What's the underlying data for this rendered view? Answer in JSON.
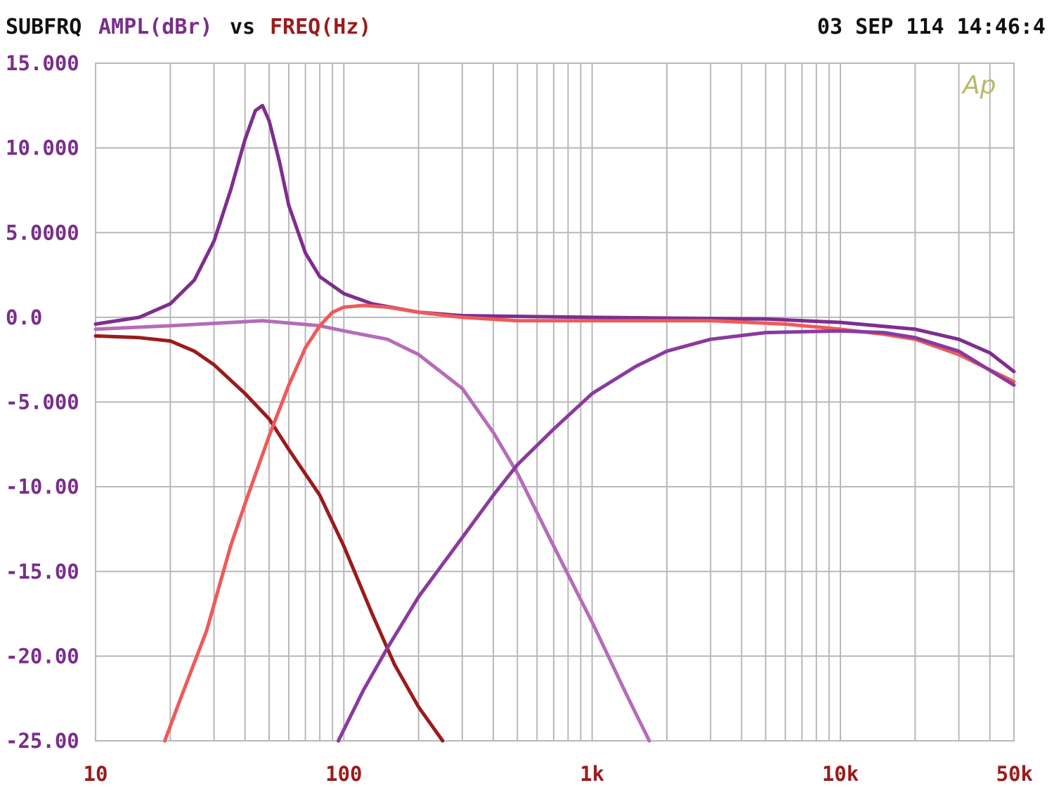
{
  "header": {
    "label": "SUBFRQ",
    "y_quantity": "AMPL(dBr)",
    "vs": "vs",
    "x_quantity": "FREQ(Hz)",
    "timestamp": "03 SEP 114 14:46:4"
  },
  "logo": "Ap",
  "colors": {
    "header_text": "#111111",
    "y_axis_text": "#7a2e8a",
    "x_axis_text": "#9b1b1b",
    "grid": "#b8b8b8",
    "logo": "#b8b86a"
  },
  "chart_data": {
    "type": "line",
    "x_scale": "log",
    "xlim": [
      10,
      50000
    ],
    "ylim": [
      -25,
      15
    ],
    "grid": true,
    "x_ticks": [
      {
        "value": 10,
        "label": "10"
      },
      {
        "value": 100,
        "label": "100"
      },
      {
        "value": 1000,
        "label": "1k"
      },
      {
        "value": 10000,
        "label": "10k"
      },
      {
        "value": 50000,
        "label": "50k"
      }
    ],
    "y_ticks": [
      {
        "value": 15,
        "label": "15.000"
      },
      {
        "value": 10,
        "label": "10.000"
      },
      {
        "value": 5,
        "label": "5.0000"
      },
      {
        "value": 0,
        "label": "0.0"
      },
      {
        "value": -5,
        "label": "-5.000"
      },
      {
        "value": -10,
        "label": "-10.00"
      },
      {
        "value": -15,
        "label": "-15.00"
      },
      {
        "value": -20,
        "label": "-20.00"
      },
      {
        "value": -25,
        "label": "-25.00"
      }
    ],
    "series": [
      {
        "color": "#7e2e8e",
        "points": [
          [
            10,
            -0.4
          ],
          [
            15,
            0
          ],
          [
            20,
            0.8
          ],
          [
            25,
            2.2
          ],
          [
            30,
            4.5
          ],
          [
            35,
            7.5
          ],
          [
            40,
            10.5
          ],
          [
            44,
            12.2
          ],
          [
            47,
            12.5
          ],
          [
            50,
            11.6
          ],
          [
            55,
            9.2
          ],
          [
            60,
            6.6
          ],
          [
            70,
            3.8
          ],
          [
            80,
            2.4
          ],
          [
            100,
            1.4
          ],
          [
            130,
            0.8
          ],
          [
            200,
            0.3
          ],
          [
            300,
            0.1
          ],
          [
            1000,
            0
          ],
          [
            5000,
            -0.1
          ],
          [
            10000,
            -0.3
          ],
          [
            20000,
            -0.7
          ],
          [
            30000,
            -1.3
          ],
          [
            40000,
            -2.1
          ],
          [
            50000,
            -3.2
          ]
        ]
      },
      {
        "color": "#b56cb9",
        "points": [
          [
            10,
            -0.7
          ],
          [
            20,
            -0.5
          ],
          [
            47,
            -0.2
          ],
          [
            80,
            -0.5
          ],
          [
            100,
            -0.8
          ],
          [
            150,
            -1.3
          ],
          [
            200,
            -2.2
          ],
          [
            300,
            -4.2
          ],
          [
            400,
            -6.8
          ],
          [
            500,
            -9.2
          ],
          [
            700,
            -13.5
          ],
          [
            1000,
            -18
          ],
          [
            1400,
            -22.5
          ],
          [
            1700,
            -25
          ]
        ]
      },
      {
        "color": "#9b1b1b",
        "points": [
          [
            10,
            -1.1
          ],
          [
            15,
            -1.2
          ],
          [
            20,
            -1.4
          ],
          [
            25,
            -2
          ],
          [
            30,
            -2.8
          ],
          [
            40,
            -4.5
          ],
          [
            50,
            -6
          ],
          [
            60,
            -7.8
          ],
          [
            80,
            -10.5
          ],
          [
            100,
            -13.5
          ],
          [
            130,
            -17.5
          ],
          [
            160,
            -20.5
          ],
          [
            200,
            -23
          ],
          [
            250,
            -25
          ]
        ]
      },
      {
        "color": "#ee5a5a",
        "points": [
          [
            19,
            -25
          ],
          [
            22,
            -22.5
          ],
          [
            28,
            -18.5
          ],
          [
            35,
            -13.5
          ],
          [
            40,
            -11
          ],
          [
            50,
            -7
          ],
          [
            60,
            -4
          ],
          [
            70,
            -1.8
          ],
          [
            80,
            -0.5
          ],
          [
            90,
            0.3
          ],
          [
            100,
            0.6
          ],
          [
            120,
            0.7
          ],
          [
            150,
            0.6
          ],
          [
            200,
            0.3
          ],
          [
            300,
            0
          ],
          [
            500,
            -0.2
          ],
          [
            1000,
            -0.2
          ],
          [
            3000,
            -0.2
          ],
          [
            6000,
            -0.4
          ],
          [
            10000,
            -0.7
          ],
          [
            15000,
            -1
          ],
          [
            20000,
            -1.3
          ],
          [
            30000,
            -2.2
          ],
          [
            50000,
            -3.8
          ]
        ]
      },
      {
        "color": "#8a3a9e",
        "points": [
          [
            95,
            -25
          ],
          [
            120,
            -22
          ],
          [
            150,
            -19.5
          ],
          [
            200,
            -16.5
          ],
          [
            300,
            -13
          ],
          [
            400,
            -10.5
          ],
          [
            500,
            -8.7
          ],
          [
            700,
            -6.6
          ],
          [
            1000,
            -4.5
          ],
          [
            1500,
            -2.9
          ],
          [
            2000,
            -2
          ],
          [
            3000,
            -1.3
          ],
          [
            5000,
            -0.9
          ],
          [
            10000,
            -0.8
          ],
          [
            15000,
            -0.9
          ],
          [
            20000,
            -1.2
          ],
          [
            30000,
            -2
          ],
          [
            50000,
            -4
          ]
        ]
      }
    ]
  }
}
